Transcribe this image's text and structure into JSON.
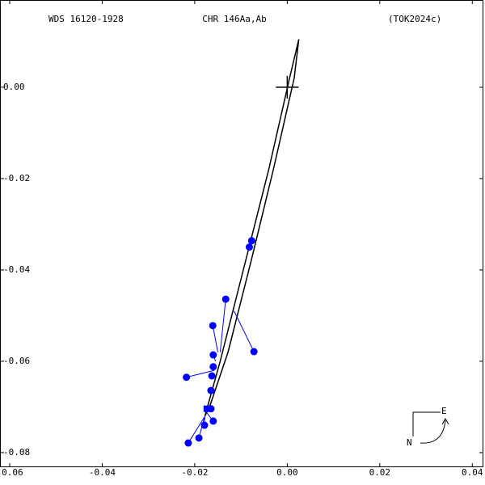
{
  "chart_data": {
    "type": "scatter",
    "header": {
      "left": "WDS 16120-1928",
      "center": "CHR 146Aa,Ab",
      "right": "(TOK2024c)"
    },
    "xlim": [
      -0.0621,
      0.0424
    ],
    "ylim": [
      -0.0832,
      0.0191
    ],
    "xticks": [
      {
        "value": -0.06,
        "label": "-0.06"
      },
      {
        "value": -0.04,
        "label": "-0.04"
      },
      {
        "value": -0.02,
        "label": "-0.02"
      },
      {
        "value": 0,
        "label": "0.00"
      },
      {
        "value": 0.02,
        "label": "0.02"
      },
      {
        "value": 0.04,
        "label": "0.04"
      }
    ],
    "yticks": [
      {
        "value": 0,
        "label": "0.00"
      },
      {
        "value": -0.02,
        "label": "-0.02"
      },
      {
        "value": -0.04,
        "label": "-0.04"
      },
      {
        "value": -0.06,
        "label": "-0.06"
      },
      {
        "value": -0.08,
        "label": "-0.08"
      }
    ],
    "orbit": {
      "color": "#000000",
      "x": [
        0.0025,
        0.0005,
        -0.004,
        -0.0095,
        -0.0145,
        -0.0178,
        -0.0168,
        -0.0128,
        -0.0078,
        -0.003,
        0.0015,
        0.0025
      ],
      "y": [
        0.0105,
        0.002,
        -0.018,
        -0.04,
        -0.06,
        -0.072,
        -0.07,
        -0.058,
        -0.038,
        -0.018,
        0.002,
        0.0105
      ]
    },
    "observations": {
      "color": "#0000ff",
      "x": [
        -0.0077,
        -0.0082,
        -0.0133,
        -0.0072,
        -0.0161,
        -0.016,
        -0.016,
        -0.0218,
        -0.0163,
        -0.0165,
        -0.0165,
        -0.0179,
        -0.016,
        -0.0191,
        -0.0214
      ],
      "y": [
        -0.0336,
        -0.035,
        -0.0464,
        -0.0579,
        -0.0522,
        -0.0586,
        -0.0612,
        -0.0635,
        -0.0632,
        -0.0664,
        -0.0704,
        -0.074,
        -0.0731,
        -0.0768,
        -0.0779
      ],
      "predicted_x": [
        -0.0082,
        -0.0086,
        -0.0145,
        -0.0115,
        -0.015,
        -0.0155,
        -0.0158,
        -0.0158,
        -0.016,
        -0.0166,
        -0.0174,
        -0.0178,
        -0.0176,
        -0.0179,
        -0.0179
      ],
      "predicted_y": [
        -0.0336,
        -0.035,
        -0.058,
        -0.049,
        -0.058,
        -0.06,
        -0.0615,
        -0.062,
        -0.063,
        -0.066,
        -0.07,
        -0.072,
        -0.071,
        -0.0722,
        -0.0722
      ]
    },
    "square": {
      "color": "#0000ff",
      "x": [
        -0.0174
      ],
      "y": [
        -0.0704
      ]
    },
    "compass": {
      "east": "E",
      "north": "N"
    }
  }
}
